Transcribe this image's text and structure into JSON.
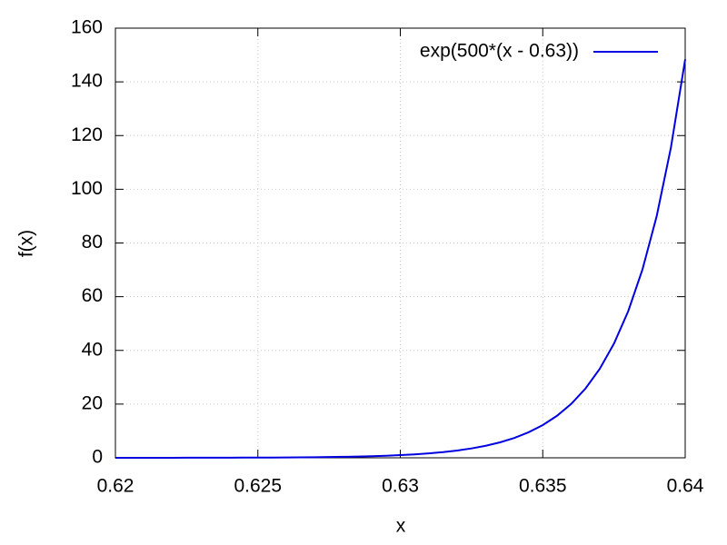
{
  "chart_data": {
    "type": "line",
    "xlabel": "x",
    "ylabel": "f(x)",
    "x": [
      0.62,
      0.6205,
      0.621,
      0.6215,
      0.622,
      0.6225,
      0.623,
      0.6235,
      0.624,
      0.6245,
      0.625,
      0.6255,
      0.626,
      0.6265,
      0.627,
      0.6275,
      0.628,
      0.6285,
      0.629,
      0.6295,
      0.63,
      0.6305,
      0.631,
      0.6315,
      0.632,
      0.6325,
      0.633,
      0.6335,
      0.634,
      0.6345,
      0.635,
      0.6355,
      0.636,
      0.6365,
      0.637,
      0.6375,
      0.638,
      0.6385,
      0.639,
      0.6395,
      0.64
    ],
    "series": [
      {
        "name": "exp(500*(x - 0.63))",
        "color": "#0000e0",
        "values": [
          0.0067,
          0.0087,
          0.0111,
          0.0143,
          0.0183,
          0.0235,
          0.0302,
          0.0388,
          0.0498,
          0.0639,
          0.0821,
          0.1054,
          0.1353,
          0.1738,
          0.2231,
          0.2865,
          0.3679,
          0.4724,
          0.6065,
          0.7788,
          1,
          1.284,
          1.6487,
          2.117,
          2.7183,
          3.4903,
          4.4817,
          5.7546,
          7.3891,
          9.4877,
          12.1825,
          15.6426,
          20.0855,
          25.7903,
          33.1155,
          42.5211,
          54.5982,
          70.1054,
          90.0171,
          115.5843,
          148.4132
        ]
      }
    ],
    "xlim": [
      0.62,
      0.64
    ],
    "xticks": [
      0.62,
      0.625,
      0.63,
      0.635,
      0.64
    ],
    "ylim": [
      0,
      160
    ],
    "yticks": [
      0,
      20,
      40,
      60,
      80,
      100,
      120,
      140,
      160
    ],
    "grid": true,
    "legend": "top-right"
  }
}
